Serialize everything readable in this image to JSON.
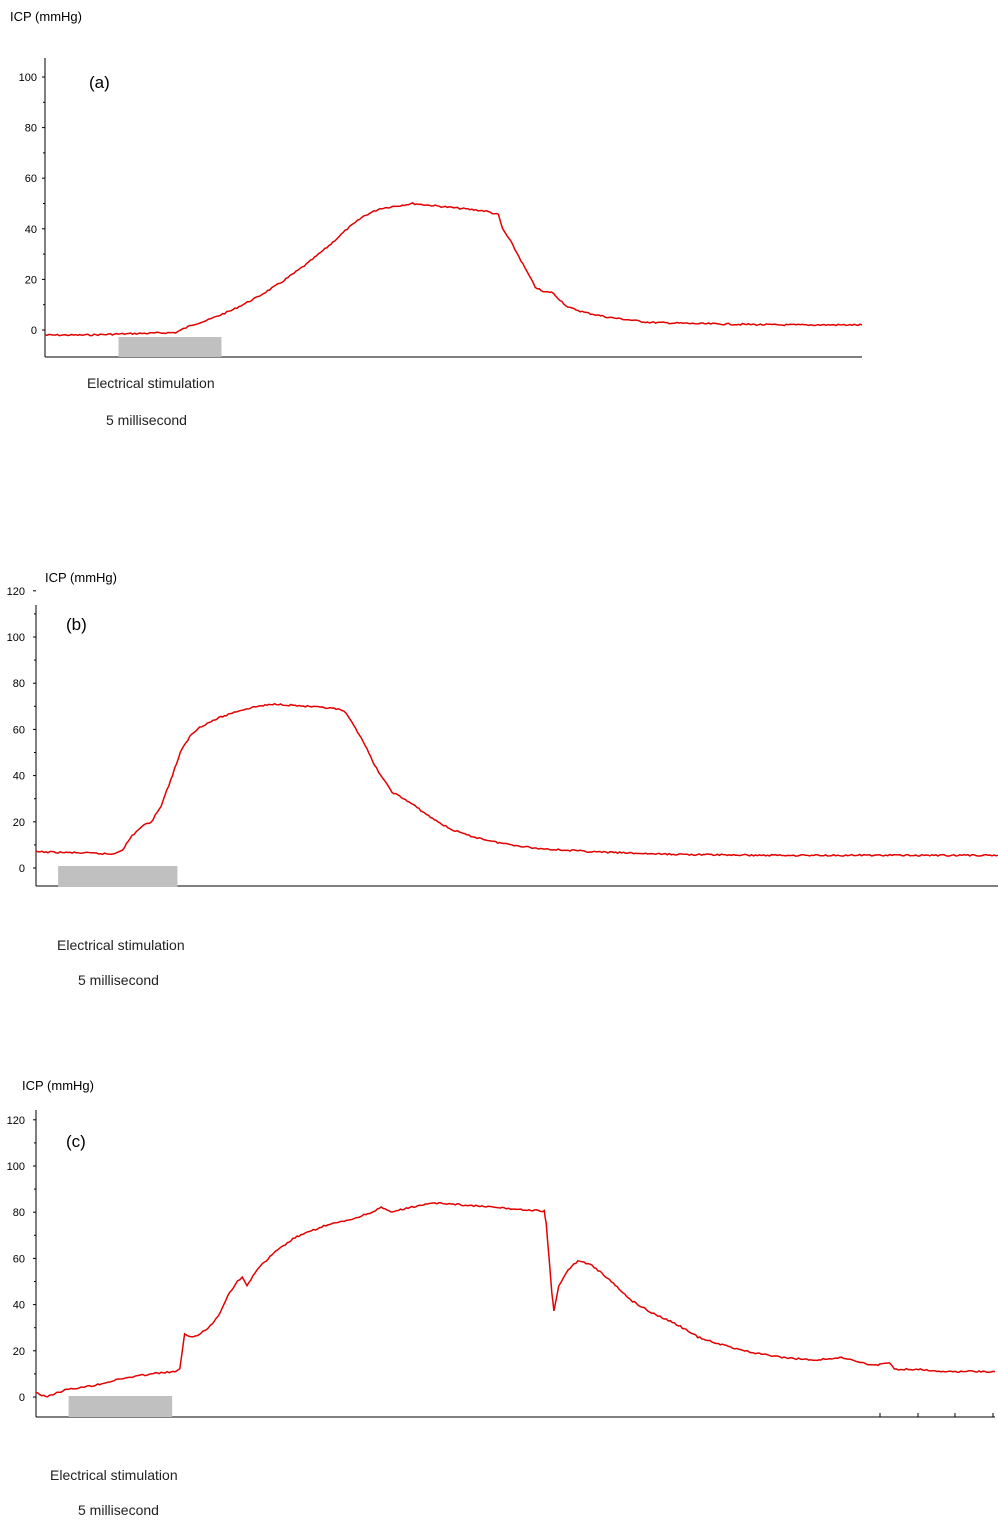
{
  "chart_data": [
    {
      "type": "line",
      "panel_label": "(a)",
      "ylabel": "ICP (mmHg)",
      "yticks": [
        0,
        20,
        40,
        60,
        80,
        100
      ],
      "ylim": [
        -10,
        110
      ],
      "xlim": [
        0,
        100
      ],
      "stimulation_label": "Electrical stimulation",
      "stimulation_duration": "5 millisecond",
      "stimulation_x": [
        9,
        21.6
      ],
      "series": [
        {
          "color": "#e30000",
          "points": [
            [
              0,
              -2
            ],
            [
              5,
              -2
            ],
            [
              10,
              -1.5
            ],
            [
              16,
              -1
            ],
            [
              18,
              2
            ],
            [
              20,
              4
            ],
            [
              23,
              8
            ],
            [
              26,
              13
            ],
            [
              29,
              19
            ],
            [
              32,
              26
            ],
            [
              35,
              34
            ],
            [
              37,
              40
            ],
            [
              39,
              45
            ],
            [
              41,
              48
            ],
            [
              43,
              49
            ],
            [
              45,
              50
            ],
            [
              48,
              49
            ],
            [
              51,
              48
            ],
            [
              54,
              47
            ],
            [
              55.5,
              45.5
            ],
            [
              56,
              40
            ],
            [
              57,
              35
            ],
            [
              58,
              29
            ],
            [
              59,
              23
            ],
            [
              60,
              17
            ],
            [
              61,
              15
            ],
            [
              62,
              15
            ],
            [
              63,
              12
            ],
            [
              64,
              9
            ],
            [
              66,
              7
            ],
            [
              69,
              5
            ],
            [
              74,
              3
            ],
            [
              80,
              2.5
            ],
            [
              90,
              2
            ],
            [
              100,
              2
            ]
          ]
        }
      ]
    },
    {
      "type": "line",
      "panel_label": "(b)",
      "ylabel": "ICP (mmHg)",
      "yticks": [
        0,
        20,
        40,
        60,
        80,
        100,
        120
      ],
      "ylim": [
        -8,
        115
      ],
      "xlim": [
        0,
        100
      ],
      "stimulation_label": "Electrical stimulation",
      "stimulation_duration": "5 millisecond",
      "stimulation_x": [
        2.3,
        14.7
      ],
      "series": [
        {
          "color": "#e30000",
          "points": [
            [
              0,
              7
            ],
            [
              5,
              6.5
            ],
            [
              8,
              6
            ],
            [
              9,
              8
            ],
            [
              10,
              14
            ],
            [
              11,
              18
            ],
            [
              12,
              20
            ],
            [
              13,
              27
            ],
            [
              14,
              38
            ],
            [
              15,
              50
            ],
            [
              16,
              57
            ],
            [
              17,
              61
            ],
            [
              19,
              65
            ],
            [
              21,
              68
            ],
            [
              23,
              70
            ],
            [
              25,
              71
            ],
            [
              28,
              70
            ],
            [
              31,
              69
            ],
            [
              32,
              68
            ],
            [
              33,
              62
            ],
            [
              34,
              55
            ],
            [
              35,
              46
            ],
            [
              36,
              39
            ],
            [
              37,
              33
            ],
            [
              39,
              28
            ],
            [
              41,
              22
            ],
            [
              43,
              17
            ],
            [
              45,
              14
            ],
            [
              48,
              11
            ],
            [
              52,
              8.5
            ],
            [
              58,
              7
            ],
            [
              65,
              6
            ],
            [
              75,
              5.5
            ],
            [
              85,
              5.5
            ],
            [
              100,
              5.5
            ]
          ]
        }
      ]
    },
    {
      "type": "line",
      "panel_label": "(c)",
      "ylabel": "ICP (mmHg)",
      "yticks": [
        0,
        20,
        40,
        60,
        80,
        100,
        120
      ],
      "ylim": [
        -8,
        115
      ],
      "xlim": [
        0,
        100
      ],
      "stimulation_label": "Electrical stimulation",
      "stimulation_duration": "5 millisecond",
      "stimulation_x": [
        3.4,
        14.2
      ],
      "series": [
        {
          "color": "#e30000",
          "points": [
            [
              0,
              2
            ],
            [
              1,
              0
            ],
            [
              3,
              3
            ],
            [
              6,
              5
            ],
            [
              9,
              8
            ],
            [
              12,
              10
            ],
            [
              14.5,
              11
            ],
            [
              15,
              12
            ],
            [
              15.5,
              27
            ],
            [
              16,
              26
            ],
            [
              17,
              27
            ],
            [
              18,
              30
            ],
            [
              19,
              35
            ],
            [
              20,
              44
            ],
            [
              21,
              50
            ],
            [
              21.5,
              52
            ],
            [
              22,
              48
            ],
            [
              23,
              55
            ],
            [
              25,
              63
            ],
            [
              27,
              69
            ],
            [
              30,
              74
            ],
            [
              33,
              77
            ],
            [
              35,
              80
            ],
            [
              36,
              82
            ],
            [
              37,
              80
            ],
            [
              38,
              81
            ],
            [
              40,
              83
            ],
            [
              42,
              84
            ],
            [
              45,
              83
            ],
            [
              48,
              82
            ],
            [
              51,
              81
            ],
            [
              53,
              80.5
            ],
            [
              53.2,
              75
            ],
            [
              53.5,
              60
            ],
            [
              53.8,
              45
            ],
            [
              54,
              37
            ],
            [
              54.5,
              48
            ],
            [
              55,
              52
            ],
            [
              55.5,
              55
            ],
            [
              56.5,
              59
            ],
            [
              58,
              57
            ],
            [
              60,
              50
            ],
            [
              62,
              42
            ],
            [
              64,
              37
            ],
            [
              67,
              31
            ],
            [
              69,
              26
            ],
            [
              72,
              22
            ],
            [
              75,
              19
            ],
            [
              78,
              17
            ],
            [
              81,
              16
            ],
            [
              84,
              17
            ],
            [
              87,
              14
            ],
            [
              88,
              14
            ],
            [
              89,
              15
            ],
            [
              89.5,
              12
            ],
            [
              92,
              12
            ],
            [
              95,
              11
            ],
            [
              100,
              11
            ]
          ]
        }
      ]
    }
  ]
}
